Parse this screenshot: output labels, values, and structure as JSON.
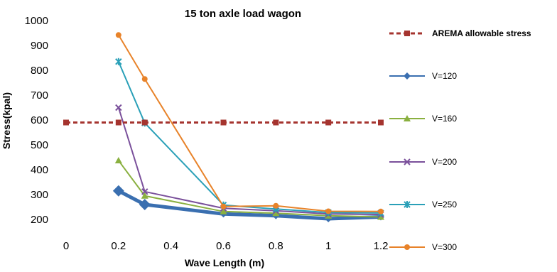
{
  "chart_data": {
    "type": "line",
    "title": "15 ton axle load wagon",
    "xlabel": "Wave Length (m)",
    "ylabel": "Stress(kpal)",
    "xlim": [
      0,
      1.2
    ],
    "ylim": [
      200,
      1000
    ],
    "x_ticks": [
      "0",
      "0.2",
      "0.4",
      "0.6",
      "0.8",
      "1",
      "1.2"
    ],
    "y_ticks": [
      "200",
      "300",
      "400",
      "500",
      "600",
      "700",
      "800",
      "900",
      "1000"
    ],
    "grid": false,
    "legend_position": "right",
    "series": [
      {
        "name": "AREMA allowable stress",
        "color": "#a5342f",
        "marker": "square",
        "dashed": true,
        "x": [
          0,
          0.2,
          0.3,
          0.6,
          0.8,
          1,
          1.2
        ],
        "y": [
          590,
          590,
          590,
          590,
          590,
          590,
          590
        ]
      },
      {
        "name": "V=120",
        "color": "#3a6fb0",
        "marker": "diamond",
        "dashed": false,
        "x": [
          0.2,
          0.3,
          0.6,
          0.8,
          1,
          1.2
        ],
        "y": [
          315,
          260,
          222,
          215,
          203,
          210
        ]
      },
      {
        "name": "V=160",
        "color": "#8ab040",
        "marker": "triangle",
        "dashed": false,
        "x": [
          0.2,
          0.3,
          0.6,
          0.8,
          1,
          1.2
        ],
        "y": [
          437,
          295,
          232,
          225,
          215,
          210
        ]
      },
      {
        "name": "V=200",
        "color": "#7a509b",
        "marker": "x",
        "dashed": false,
        "x": [
          0.2,
          0.3,
          0.6,
          0.8,
          1,
          1.2
        ],
        "y": [
          650,
          312,
          245,
          235,
          222,
          220
        ]
      },
      {
        "name": "V=250",
        "color": "#2aa0b8",
        "marker": "star",
        "dashed": false,
        "x": [
          0.2,
          0.3,
          0.6,
          0.8,
          1,
          1.2
        ],
        "y": [
          835,
          588,
          258,
          242,
          228,
          226
        ]
      },
      {
        "name": "V=300",
        "color": "#e8832a",
        "marker": "circle",
        "dashed": false,
        "x": [
          0.2,
          0.3,
          0.6,
          0.8,
          1,
          1.2
        ],
        "y": [
          942,
          765,
          252,
          255,
          233,
          232
        ]
      }
    ]
  }
}
